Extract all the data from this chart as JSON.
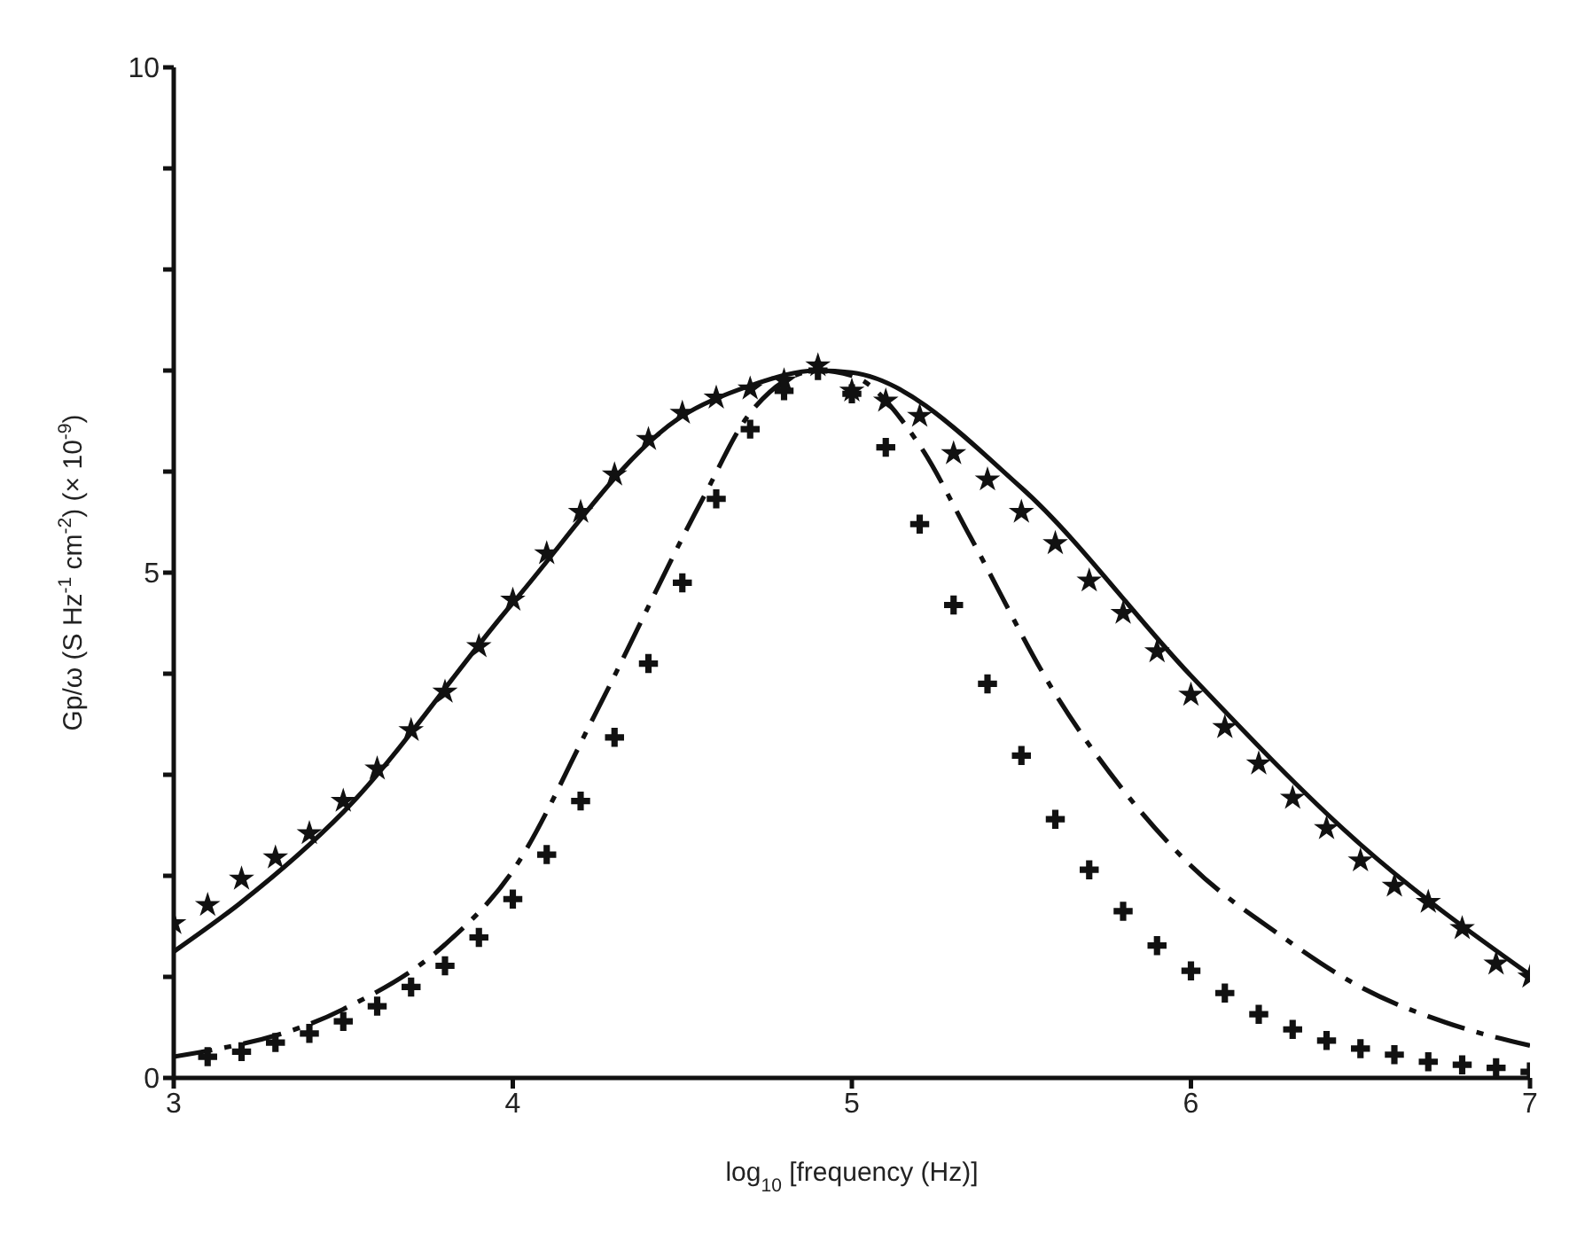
{
  "chart_data": {
    "type": "scatter",
    "xlabel": "log$_{10}$ [frequency (Hz)]",
    "ylabel": "Gp/ω (S Hz$^{-1}$ cm$^{-2}$) (× 10$^{-9}$)",
    "xlim": [
      3,
      7
    ],
    "xticks": [
      3,
      4,
      5,
      6,
      7
    ],
    "ylim": [
      0,
      10
    ],
    "yticks": [
      0,
      {
        "value": 1,
        "label": null
      },
      {
        "value": 2,
        "label": null
      },
      {
        "value": 3,
        "label": null
      },
      {
        "value": 4,
        "label": null
      },
      5,
      {
        "value": 6,
        "label": null
      },
      {
        "value": 7,
        "label": null
      },
      {
        "value": 8,
        "label": null
      },
      {
        "value": 9,
        "label": null
      },
      10
    ],
    "grid": false,
    "legend": false,
    "series": [
      {
        "marker": "star",
        "color": "#111111",
        "x": [
          3.0,
          3.1,
          3.2,
          3.3,
          3.4,
          3.5,
          3.6,
          3.7,
          3.8,
          3.9,
          4.0,
          4.1,
          4.2,
          4.3,
          4.4,
          4.5,
          4.6,
          4.7,
          4.8,
          4.9,
          5.0,
          5.1,
          5.2,
          5.3,
          5.4,
          5.5,
          5.6,
          5.7,
          5.8,
          5.9,
          6.0,
          6.1,
          6.2,
          6.3,
          6.4,
          6.5,
          6.6,
          6.7,
          6.8,
          6.9,
          7.0
        ],
        "values": [
          1.53,
          1.71,
          1.97,
          2.18,
          2.42,
          2.74,
          3.06,
          3.44,
          3.82,
          4.27,
          4.73,
          5.19,
          5.6,
          5.97,
          6.32,
          6.58,
          6.73,
          6.82,
          6.9,
          7.05,
          6.8,
          6.7,
          6.55,
          6.18,
          5.92,
          5.6,
          5.29,
          4.92,
          4.6,
          4.22,
          3.79,
          3.47,
          3.11,
          2.77,
          2.47,
          2.15,
          1.9,
          1.74,
          1.48,
          1.13,
          1.0
        ]
      },
      {
        "type": "line",
        "marker": "none",
        "line_style": "solid",
        "color": "#111111",
        "x": [
          3.0,
          3.2,
          3.5,
          4.0,
          4.5,
          4.7,
          4.9,
          5.0,
          5.5,
          6.0,
          6.5,
          7.0
        ],
        "values": [
          1.25,
          1.74,
          2.63,
          4.7,
          6.55,
          6.85,
          7.0,
          6.98,
          5.84,
          3.98,
          2.31,
          1.02
        ]
      },
      {
        "marker": "cross",
        "color": "#111111",
        "x": [
          3.1,
          3.2,
          3.3,
          3.4,
          3.5,
          3.6,
          3.7,
          3.8,
          3.9,
          4.0,
          4.1,
          4.2,
          4.3,
          4.4,
          4.5,
          4.6,
          4.7,
          4.8,
          4.9,
          5.0,
          5.1,
          5.2,
          5.3,
          5.4,
          5.5,
          5.6,
          5.7,
          5.8,
          5.9,
          6.0,
          6.1,
          6.2,
          6.3,
          6.4,
          6.5,
          6.6,
          6.7,
          6.8,
          6.9,
          7.0
        ],
        "values": [
          0.21,
          0.26,
          0.35,
          0.44,
          0.56,
          0.71,
          0.9,
          1.11,
          1.39,
          1.77,
          2.21,
          2.74,
          3.37,
          4.1,
          4.9,
          5.73,
          6.42,
          6.8,
          7.0,
          6.77,
          6.24,
          5.48,
          4.68,
          3.9,
          3.19,
          2.56,
          2.06,
          1.65,
          1.31,
          1.06,
          0.84,
          0.63,
          0.48,
          0.37,
          0.29,
          0.23,
          0.16,
          0.13,
          0.1,
          0.06
        ]
      },
      {
        "type": "line",
        "marker": "none",
        "line_style": "dashed",
        "color": "#111111",
        "x": [
          3.0,
          3.5,
          3.8,
          4.0,
          4.24,
          4.56,
          4.7,
          4.9,
          5.0,
          5.2,
          5.35,
          5.6,
          5.8,
          6.0,
          6.26,
          6.5,
          6.75,
          7.0
        ],
        "values": [
          0.21,
          0.68,
          1.32,
          2.05,
          3.58,
          5.73,
          6.58,
          7.0,
          6.95,
          6.26,
          5.35,
          3.8,
          2.85,
          2.1,
          1.42,
          0.9,
          0.55,
          0.32
        ]
      }
    ]
  }
}
